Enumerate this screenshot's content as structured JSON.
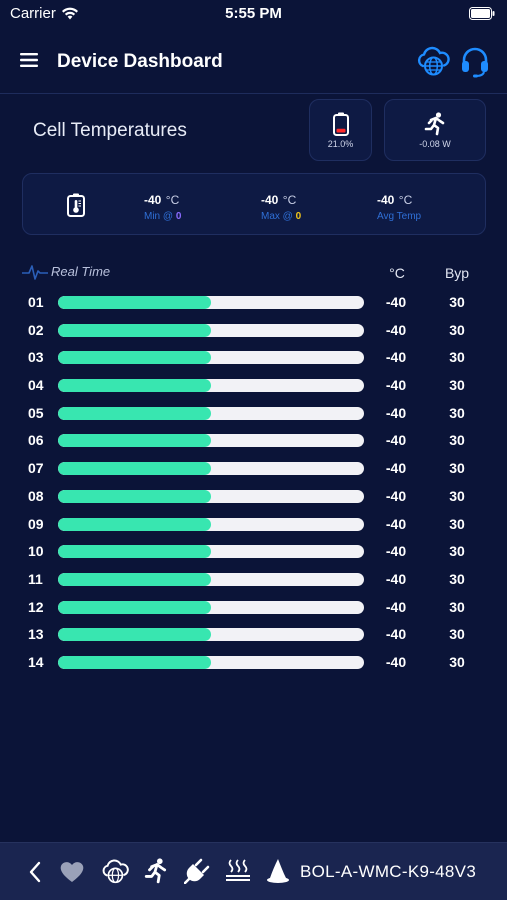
{
  "status": {
    "carrier": "Carrier",
    "time": "5:55 PM"
  },
  "header": {
    "title": "Device Dashboard"
  },
  "section": {
    "title": "Cell Temperatures"
  },
  "battery_card": {
    "text": "21.0%",
    "level": 0.21
  },
  "power_card": {
    "text": "-0.08 W"
  },
  "summary": {
    "min": {
      "value": "-40",
      "unit": "°C",
      "label": "Min @",
      "index": "0"
    },
    "max": {
      "value": "-40",
      "unit": "°C",
      "label": "Max @",
      "index": "0"
    },
    "avg": {
      "value": "-40",
      "unit": "°C",
      "label": "Avg Temp"
    }
  },
  "realtime": {
    "label": "Real Time",
    "col_temp": "°C",
    "col_bypass": "Byp"
  },
  "colors": {
    "background": "#0b1438",
    "accent": "#38e6b0",
    "link": "#2f6fd6",
    "min_index": "#8b6bff",
    "max_index": "#f0c419"
  },
  "cells": [
    {
      "id": "01",
      "temp": "-40",
      "bypass": "30",
      "fill": 0.5
    },
    {
      "id": "02",
      "temp": "-40",
      "bypass": "30",
      "fill": 0.5
    },
    {
      "id": "03",
      "temp": "-40",
      "bypass": "30",
      "fill": 0.5
    },
    {
      "id": "04",
      "temp": "-40",
      "bypass": "30",
      "fill": 0.5
    },
    {
      "id": "05",
      "temp": "-40",
      "bypass": "30",
      "fill": 0.5
    },
    {
      "id": "06",
      "temp": "-40",
      "bypass": "30",
      "fill": 0.5
    },
    {
      "id": "07",
      "temp": "-40",
      "bypass": "30",
      "fill": 0.5
    },
    {
      "id": "08",
      "temp": "-40",
      "bypass": "30",
      "fill": 0.5
    },
    {
      "id": "09",
      "temp": "-40",
      "bypass": "30",
      "fill": 0.5
    },
    {
      "id": "10",
      "temp": "-40",
      "bypass": "30",
      "fill": 0.5
    },
    {
      "id": "11",
      "temp": "-40",
      "bypass": "30",
      "fill": 0.5
    },
    {
      "id": "12",
      "temp": "-40",
      "bypass": "30",
      "fill": 0.5
    },
    {
      "id": "13",
      "temp": "-40",
      "bypass": "30",
      "fill": 0.5
    },
    {
      "id": "14",
      "temp": "-40",
      "bypass": "30",
      "fill": 0.5
    }
  ],
  "bottom_bar": {
    "device_name": "BOL-A-WMC-K9-48V3",
    "icons": [
      "back-chevron-icon",
      "heart-icon",
      "cloud-globe-icon",
      "running-icon",
      "plug-icon",
      "heater-icon",
      "wizard-hat-icon"
    ]
  }
}
